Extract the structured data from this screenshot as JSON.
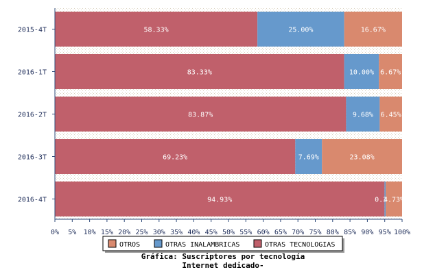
{
  "chart_data": {
    "type": "bar",
    "orientation": "horizontal",
    "stacked": true,
    "percent": true,
    "categories": [
      "2015-4T",
      "2016-1T",
      "2016-2T",
      "2016-3T",
      "2016-4T"
    ],
    "series": [
      {
        "name": "OTRAS TECNOLOGIAS",
        "color": "#c0606b",
        "values": [
          58.33,
          83.33,
          83.87,
          69.23,
          94.93
        ],
        "labels": [
          "58.33%",
          "83.33%",
          "83.87%",
          "69.23%",
          "94.93%"
        ]
      },
      {
        "name": "OTRAS INALAMBRICAS",
        "color": "#6699cc",
        "values": [
          25.0,
          10.0,
          9.68,
          7.69,
          0.34
        ],
        "labels": [
          "25.00%",
          "10.00%",
          "9.68%",
          "7.69%",
          "0.34%"
        ]
      },
      {
        "name": "OTROS",
        "color": "#d9896e",
        "values": [
          16.67,
          6.67,
          6.45,
          23.08,
          4.73
        ],
        "labels": [
          "16.67%",
          "6.67%",
          "6.45%",
          "23.08%",
          "4.73%"
        ]
      }
    ],
    "xticks": [
      "0%",
      "5%",
      "10%",
      "15%",
      "20%",
      "25%",
      "30%",
      "35%",
      "40%",
      "45%",
      "50%",
      "55%",
      "60%",
      "65%",
      "70%",
      "75%",
      "80%",
      "85%",
      "90%",
      "95%",
      "100%"
    ],
    "xlim": [
      0,
      100
    ],
    "legend": [
      "OTROS",
      "OTRAS INALAMBRICAS",
      "OTRAS TECNOLOGIAS"
    ],
    "legend_position": "bottom",
    "title_line1": "Gráfica: Suscriptores por tecnología",
    "title_line2": "Internet dedicado-"
  }
}
